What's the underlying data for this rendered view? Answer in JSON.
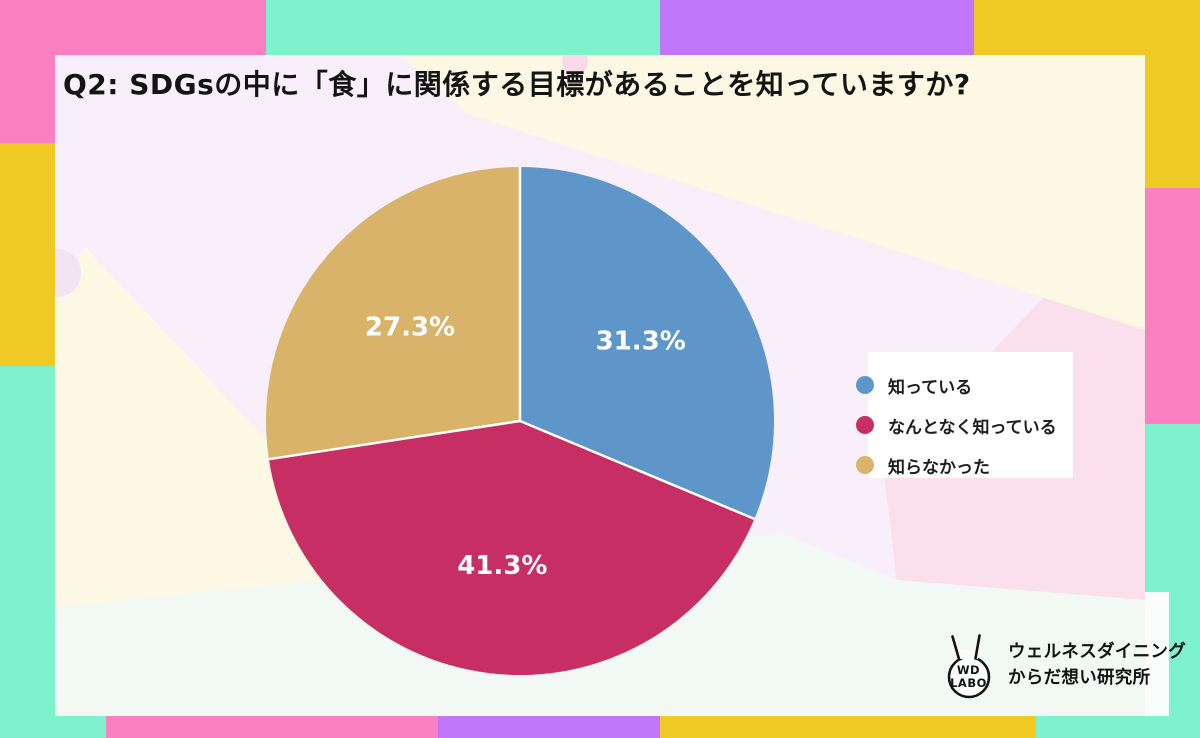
{
  "chart_data": {
    "type": "pie",
    "title": "Q2: SDGsの中に「食」に関係する目標があることを知っていますか?",
    "labels": [
      "知っている",
      "なんとなく知っている",
      "知らなかった"
    ],
    "values": [
      31.3,
      41.3,
      27.3
    ],
    "value_labels": [
      "31.3%",
      "41.3%",
      "27.3%"
    ],
    "colors": [
      "#5E96CA",
      "#C72F64",
      "#D9B369"
    ],
    "unit": "%",
    "start_angle_deg": 0,
    "direction": "clockwise",
    "legend_position": "right",
    "data_labels": "inside slices, white bold"
  },
  "logo": {
    "badge_line1": "WD",
    "badge_line2": "LABO",
    "name_line1": "ウェルネスダイニング",
    "name_line2": "からだ想い研究所"
  },
  "palette": {
    "border_pink": "#FA80C1",
    "border_mint": "#7DF2CC",
    "border_purple": "#C176F9",
    "border_yellow": "#EFC924",
    "paper_lavender": "#F8EFFB",
    "paper_cream": "#FDF8E3",
    "paper_pink": "#FBDFEC",
    "paper_mint": "#F2F9F5",
    "paper_white": "#FBFDFC",
    "legend_bg": "#FFFFFF",
    "title_color": "#141414",
    "pie_label_color": "#FFFFFF",
    "divider_color": "#FFFFFF"
  }
}
